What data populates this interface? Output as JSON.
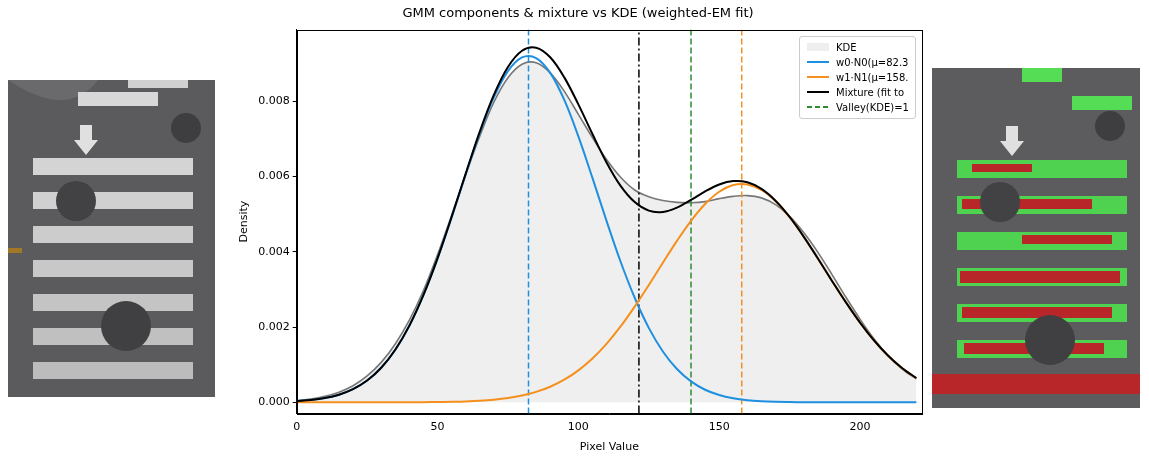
{
  "chart_data": {
    "type": "line",
    "title": "GMM components & mixture vs KDE (weighted-EM fit)",
    "x_label": "Pixel Value",
    "y_label": "Density",
    "x": [
      0,
      5,
      10,
      15,
      20,
      25,
      30,
      35,
      40,
      45,
      50,
      55,
      60,
      65,
      70,
      75,
      80,
      85,
      90,
      95,
      100,
      105,
      110,
      115,
      120,
      125,
      130,
      135,
      140,
      145,
      150,
      155,
      160,
      165,
      170,
      175,
      180,
      185,
      190,
      195,
      200,
      205,
      210,
      215,
      220
    ],
    "series": [
      {
        "name": "KDE",
        "type": "area",
        "color": "#777777",
        "values": [
          5e-05,
          9e-05,
          0.00016,
          0.00027,
          0.00044,
          0.0007,
          0.00106,
          0.00155,
          0.00218,
          0.00297,
          0.00392,
          0.00497,
          0.00605,
          0.00707,
          0.00797,
          0.00862,
          0.00898,
          0.00902,
          0.00875,
          0.00826,
          0.00765,
          0.00703,
          0.00645,
          0.00598,
          0.00564,
          0.00546,
          0.00536,
          0.00531,
          0.0053,
          0.00533,
          0.00541,
          0.00547,
          0.00549,
          0.00543,
          0.00525,
          0.00494,
          0.00451,
          0.00399,
          0.0034,
          0.00279,
          0.00221,
          0.00168,
          0.00123,
          0.00088,
          0.00062
        ]
      },
      {
        "name": "w0·N0(μ=82.3",
        "type": "line",
        "color": "#1f8fe0",
        "line_style": "solid",
        "values": [
          3.1e-05,
          6e-05,
          0.000112,
          0.000202,
          0.000349,
          0.000578,
          0.000917,
          0.001396,
          0.002035,
          0.002848,
          0.003817,
          0.004909,
          0.006051,
          0.00715,
          0.008098,
          0.008795,
          0.00916,
          0.009144,
          0.008751,
          0.008031,
          0.007065,
          0.005961,
          0.004818,
          0.003733,
          0.002777,
          0.001978,
          0.001351,
          0.000884,
          0.000555,
          0.000334,
          0.000193,
          0.000107,
          5.7e-05,
          2.9e-05,
          1.4e-05,
          7e-06,
          3e-06,
          1e-06,
          0,
          0,
          0,
          0,
          0,
          0,
          0
        ]
      },
      {
        "name": "w1·N1(μ=158.",
        "type": "line",
        "color": "#f5901e",
        "line_style": "solid",
        "values": [
          0,
          0,
          0,
          0,
          0,
          0,
          0,
          1e-06,
          2e-06,
          4e-06,
          7e-06,
          1.4e-05,
          2.4e-05,
          4.1e-05,
          6.9e-05,
          0.000113,
          0.000179,
          0.000276,
          0.000413,
          0.0006,
          0.000849,
          0.001165,
          0.001554,
          0.002016,
          0.002542,
          0.003113,
          0.003706,
          0.004288,
          0.00482,
          0.005266,
          0.005592,
          0.00577,
          0.005787,
          0.00564,
          0.005342,
          0.004917,
          0.004399,
          0.003824,
          0.003231,
          0.002653,
          0.002117,
          0.001642,
          0.001237,
          0.000906,
          0.000645
        ]
      },
      {
        "name": "Mixture (fit to",
        "type": "line",
        "color": "#000000",
        "line_style": "solid",
        "values": [
          3.1e-05,
          6e-05,
          0.000112,
          0.000202,
          0.000349,
          0.000578,
          0.000918,
          0.001397,
          0.002037,
          0.002852,
          0.003824,
          0.004923,
          0.006075,
          0.007191,
          0.008167,
          0.008908,
          0.009339,
          0.00942,
          0.009164,
          0.008631,
          0.007914,
          0.007126,
          0.006372,
          0.005749,
          0.005319,
          0.005091,
          0.005057,
          0.005172,
          0.005375,
          0.0056,
          0.005785,
          0.005877,
          0.005844,
          0.005669,
          0.005356,
          0.004924,
          0.004402,
          0.003825,
          0.003231,
          0.002653,
          0.002117,
          0.001642,
          0.001237,
          0.000906,
          0.000645
        ]
      },
      {
        "name": "Valley(KDE)=1",
        "type": "vline",
        "x": 140,
        "color": "#2e8b2e",
        "line_style": "dashed"
      }
    ],
    "vlines": [
      {
        "x": 82.3,
        "color": "#1f8fe0",
        "line_style": "dashed"
      },
      {
        "x": 158,
        "color": "#f5901e",
        "line_style": "dashed"
      },
      {
        "x": 121.5,
        "color": "#000000",
        "line_style": "dashdot"
      }
    ],
    "xlim": [
      0,
      222
    ],
    "xticks": [
      0,
      50,
      100,
      150,
      200
    ],
    "ylim": [
      -0.0003,
      0.0099
    ],
    "yticks": [
      {
        "value": 0,
        "label": "0.000"
      },
      {
        "value": 0.002,
        "label": "0.002"
      },
      {
        "value": 0.004,
        "label": "0.004"
      },
      {
        "value": 0.006,
        "label": "0.006"
      },
      {
        "value": 0.008,
        "label": "0.008"
      }
    ],
    "grid": false,
    "legend": "upper right"
  }
}
